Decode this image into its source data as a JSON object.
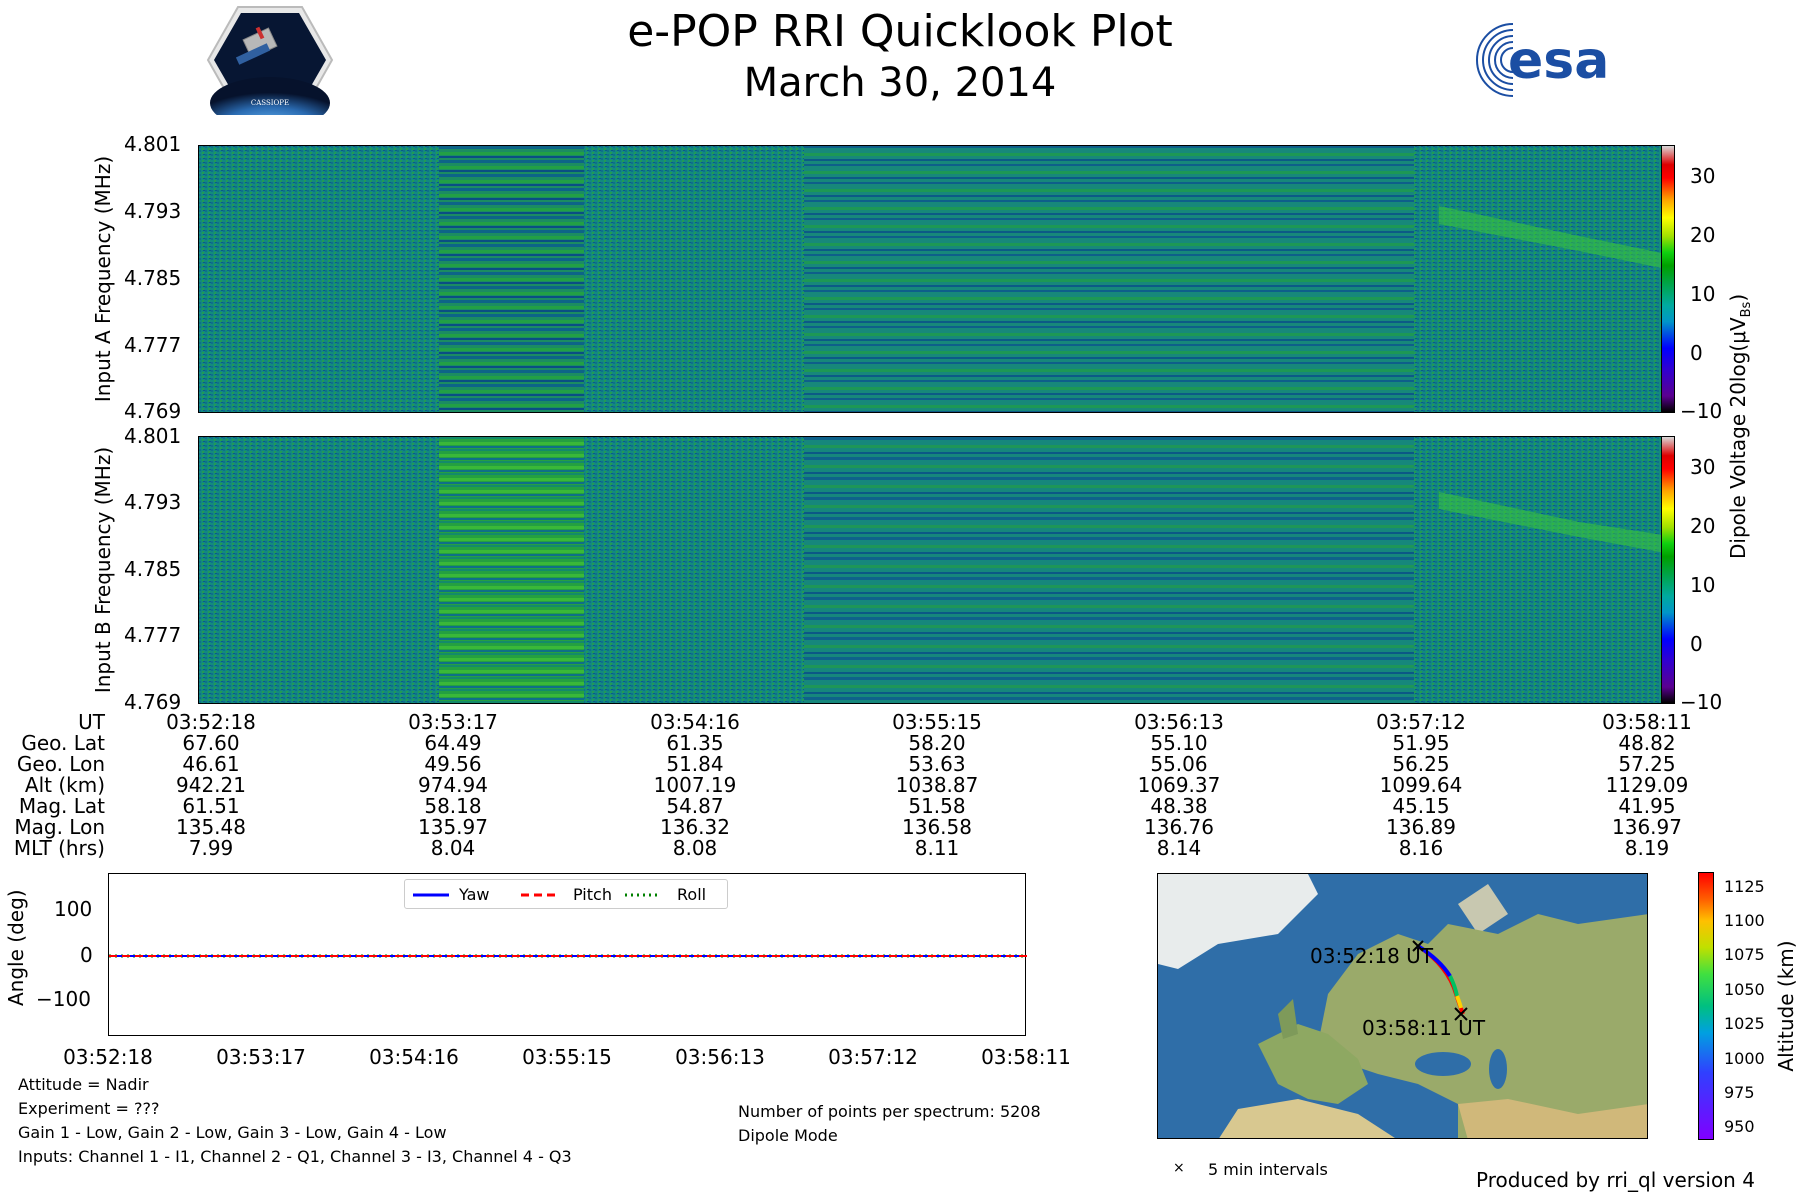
{
  "header": {
    "title": "e-POP RRI Quicklook Plot",
    "subtitle": "March 30, 2014",
    "cassiope_logo_text": "CASSIOPE",
    "esa_logo_text": "esa"
  },
  "colors": {
    "yaw": "#0000ff",
    "pitch": "#ff0000",
    "roll": "#008000"
  },
  "spectrograms": {
    "panel_a_ylabel": "Input A Frequency (MHz)",
    "panel_b_ylabel": "Input B Frequency (MHz)",
    "y_ticks": [
      "4.801",
      "4.793",
      "4.785",
      "4.777",
      "4.769"
    ],
    "colorbar_label": "Dipole Voltage 20log(μV",
    "colorbar_label_sub": "Bs",
    "colorbar_label_end": ")",
    "colorbar_ticks": [
      "30",
      "20",
      "10",
      "0",
      "−10"
    ]
  },
  "orbit_table": {
    "row_labels": [
      "UT",
      "Geo. Lat",
      "Geo. Lon",
      "Alt (km)",
      "Mag. Lat",
      "Mag. Lon",
      "MLT (hrs)"
    ],
    "columns": [
      [
        "03:52:18",
        "67.60",
        "46.61",
        "942.21",
        "61.51",
        "135.48",
        "7.99"
      ],
      [
        "03:53:17",
        "64.49",
        "49.56",
        "974.94",
        "58.18",
        "135.97",
        "8.04"
      ],
      [
        "03:54:16",
        "61.35",
        "51.84",
        "1007.19",
        "54.87",
        "136.32",
        "8.08"
      ],
      [
        "03:55:15",
        "58.20",
        "53.63",
        "1038.87",
        "51.58",
        "136.58",
        "8.11"
      ],
      [
        "03:56:13",
        "55.10",
        "55.06",
        "1069.37",
        "48.38",
        "136.76",
        "8.14"
      ],
      [
        "03:57:12",
        "51.95",
        "56.25",
        "1099.64",
        "45.15",
        "136.89",
        "8.16"
      ],
      [
        "03:58:11",
        "48.82",
        "57.25",
        "1129.09",
        "41.95",
        "136.97",
        "8.19"
      ]
    ]
  },
  "attitude": {
    "ylabel": "Angle (deg)",
    "y_ticks": [
      "100",
      "0",
      "−100"
    ],
    "x_ticks": [
      "03:52:18",
      "03:53:17",
      "03:54:16",
      "03:55:15",
      "03:56:13",
      "03:57:12",
      "03:58:11"
    ],
    "legend": {
      "yaw": "Yaw",
      "pitch": "Pitch",
      "roll": "Roll"
    }
  },
  "chart_data": [
    {
      "type": "heatmap",
      "title": "",
      "ylabel": "Input A Frequency (MHz)",
      "ylim": [
        4.769,
        4.801
      ],
      "x_ticks": [
        "03:52:18",
        "03:53:17",
        "03:54:16",
        "03:55:15",
        "03:56:13",
        "03:57:12",
        "03:58:11"
      ],
      "colorbar_range": [
        -10,
        35
      ]
    },
    {
      "type": "heatmap",
      "title": "",
      "ylabel": "Input B Frequency (MHz)",
      "ylim": [
        4.769,
        4.801
      ],
      "x_ticks": [
        "03:52:18",
        "03:53:17",
        "03:54:16",
        "03:55:15",
        "03:56:13",
        "03:57:12",
        "03:58:11"
      ],
      "colorbar_range": [
        -10,
        35
      ]
    },
    {
      "type": "line",
      "ylabel": "Angle (deg)",
      "ylim": [
        -180,
        180
      ],
      "categories": [
        "03:52:18",
        "03:53:17",
        "03:54:16",
        "03:55:15",
        "03:56:13",
        "03:57:12",
        "03:58:11"
      ],
      "series": [
        {
          "name": "Yaw",
          "values": [
            0,
            0,
            0,
            0,
            0,
            0,
            0
          ]
        },
        {
          "name": "Pitch",
          "values": [
            0,
            0,
            0,
            0,
            0,
            0,
            0
          ]
        },
        {
          "name": "Roll",
          "values": [
            0,
            0,
            0,
            0,
            0,
            0,
            0
          ]
        }
      ]
    },
    {
      "type": "scatter",
      "ylabel": "Altitude (km)",
      "colorbar_ticks": [
        "1125",
        "1100",
        "1075",
        "1050",
        "1025",
        "1000",
        "975",
        "950"
      ],
      "start_label": "03:52:18 UT",
      "end_label": "03:58:11 UT",
      "legend_marker_label": "5 min intervals"
    }
  ],
  "notes": {
    "attitude": "Attitude = Nadir",
    "experiment": "Experiment = ???",
    "gains": "Gain 1 - Low, Gain 2 - Low, Gain 3 - Low, Gain 4 - Low",
    "inputs": "Inputs: Channel 1 - I1, Channel 2 - Q1, Channel 3 - I3, Channel 4 - Q3",
    "points": "Number of points per spectrum: 5208",
    "mode": "Dipole Mode",
    "footer": "Produced by rri_ql version 4"
  },
  "map": {
    "altitude_label": "Altitude (km)",
    "altitude_ticks": [
      "1125",
      "1100",
      "1075",
      "1050",
      "1025",
      "1000",
      "975",
      "950"
    ],
    "start_label": "03:52:18 UT",
    "end_label": "03:58:11 UT",
    "marker_legend": "5 min intervals"
  }
}
